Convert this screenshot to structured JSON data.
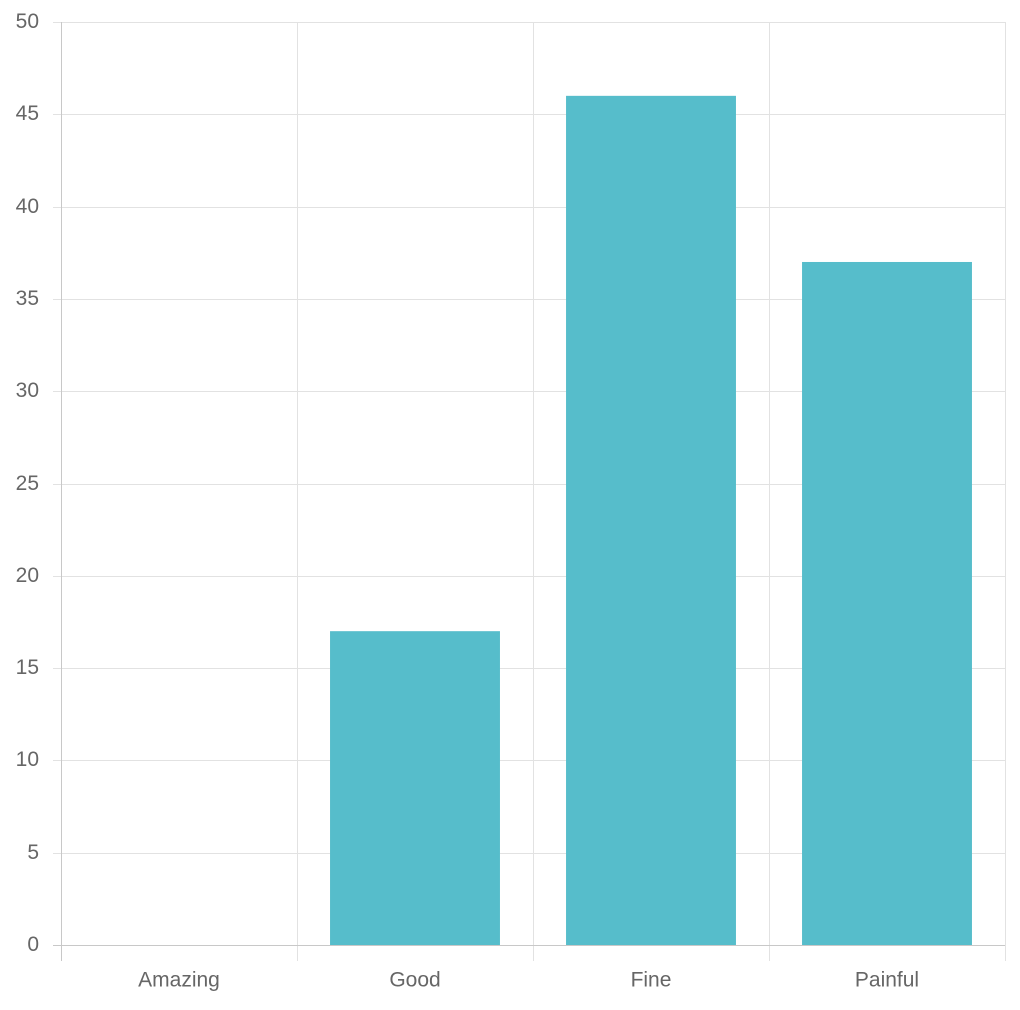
{
  "chart_data": {
    "type": "bar",
    "categories": [
      "Amazing",
      "Good",
      "Fine",
      "Painful"
    ],
    "values": [
      0,
      17,
      46,
      37
    ],
    "ylim": [
      0,
      50
    ],
    "yticks": [
      0,
      5,
      10,
      15,
      20,
      25,
      30,
      35,
      40,
      45,
      50
    ],
    "grid": true,
    "legend": "none",
    "colors": {
      "bar": "#56bdcb",
      "grid": "#e2e2e2",
      "axis": "#c8c8c8",
      "text": "#666666"
    }
  }
}
